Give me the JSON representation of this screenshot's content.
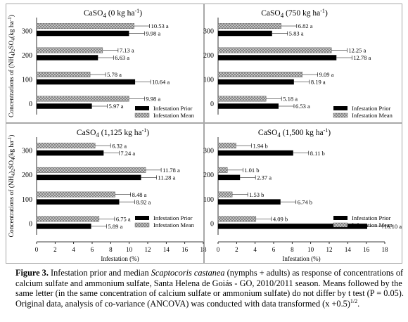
{
  "figure": {
    "label": "Figure 3.",
    "caption_part1": " Infestation prior and median ",
    "caption_species": "Scaptocoris castanea",
    "caption_part2": " (nymphs + adults) as response of concentrations of calcium sulfate and ammonium sulfate, Santa Helena de Goiás - GO, 2010/2011 season. Means followed by the same letter (in the same concentration of calcium sulfate or ammonium sulfate) do not differ by t test (P = 0.05). Original data, analysis of co-variance (ANCOVA) was conducted with data transformed (x +0.5)",
    "caption_exponent": "1/2",
    "caption_end": "."
  },
  "colors": {
    "prior": "#000000",
    "mean_fill": "#d0d0d0",
    "frame": "#a8a8a8"
  },
  "chart_data": [
    {
      "type": "bar",
      "orientation": "horizontal",
      "title": "CaSO4 (0 kg ha-1)",
      "ylabel": "Concentrations of (NH4)2SO4(kg ha-1)",
      "xlabel": "",
      "xlim": [
        0,
        18
      ],
      "categories": [
        "0",
        "100",
        "200",
        "300"
      ],
      "series": [
        {
          "name": "Infestation Prior",
          "values": [
            5.97,
            10.64,
            6.63,
            9.98
          ],
          "labels": [
            "5.97 a",
            "10.64 a",
            "6.63 a",
            "9.98 a"
          ]
        },
        {
          "name": "Infestation Mean",
          "values": [
            9.98,
            5.78,
            7.13,
            10.53
          ],
          "labels": [
            "9.98 a",
            "5.78 a",
            "7.13 a",
            "10.53 a"
          ]
        }
      ],
      "legend": "bottom-right"
    },
    {
      "type": "bar",
      "orientation": "horizontal",
      "title": "CaSO4 (750 kg ha-1)",
      "xlabel": "",
      "xlim": [
        0,
        18
      ],
      "categories": [
        "0",
        "100",
        "200",
        "300"
      ],
      "series": [
        {
          "name": "Infestation Prior",
          "values": [
            6.53,
            8.19,
            12.78,
            5.83
          ],
          "labels": [
            "6.53 a",
            "8.19 a",
            "12.78 a",
            "5.83 a"
          ]
        },
        {
          "name": "Infestation Mean",
          "values": [
            5.18,
            9.09,
            12.25,
            6.82
          ],
          "labels": [
            "5.18 a",
            "9.09 a",
            "12.25 a",
            "6.82 a"
          ]
        }
      ],
      "legend": "bottom-right"
    },
    {
      "type": "bar",
      "orientation": "horizontal",
      "title": "CaSO4 (1,125 kg ha-1)",
      "ylabel": "Concentrations of (NH4)2SO4(kg ha-1)",
      "xlabel": "Infestation (%)",
      "xlim": [
        0,
        18
      ],
      "categories": [
        "0",
        "100",
        "200",
        "300"
      ],
      "series": [
        {
          "name": "Infestation Prior",
          "values": [
            5.89,
            8.92,
            11.28,
            7.24
          ],
          "labels": [
            "5.89 a",
            "8.92 a",
            "11.28 a",
            "7.24 a"
          ]
        },
        {
          "name": "Infestation Mean",
          "values": [
            6.75,
            8.48,
            11.78,
            6.32
          ],
          "labels": [
            "6.75 a",
            "8.48 a",
            "11.78 a",
            "6.32 a"
          ]
        }
      ],
      "legend": "bottom-right"
    },
    {
      "type": "bar",
      "orientation": "horizontal",
      "title": "CaSO4(1,500 kg ha-1)",
      "xlabel": "Infestation (%)",
      "xlim": [
        0,
        18
      ],
      "categories": [
        "0",
        "100",
        "200",
        "300"
      ],
      "series": [
        {
          "name": "Infestation Prior",
          "values": [
            16.1,
            6.74,
            2.37,
            8.11
          ],
          "labels": [
            "16.10 a",
            "6.74 b",
            "2.37 a",
            "8.11 b"
          ]
        },
        {
          "name": "Infestation Mean",
          "values": [
            4.09,
            1.53,
            1.01,
            1.94
          ],
          "labels": [
            "4.09 b",
            "1.53 b",
            "1.01 b",
            "1.94 b"
          ]
        }
      ],
      "legend": "bottom-right"
    }
  ],
  "ticks": {
    "x": [
      "0",
      "2",
      "4",
      "6",
      "8",
      "10",
      "12",
      "14",
      "16",
      "18"
    ]
  }
}
